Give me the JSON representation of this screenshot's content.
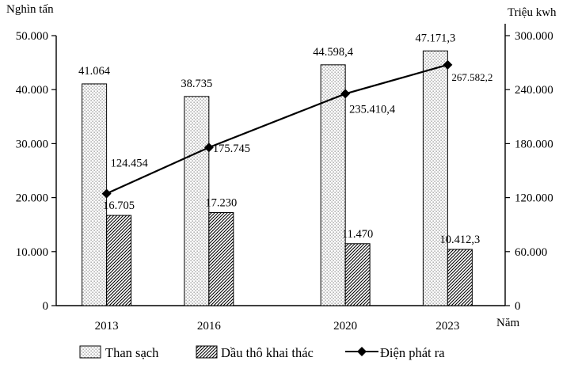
{
  "chart_data": {
    "type": "bar-line-combo",
    "categories": [
      "2013",
      "2016",
      "2020",
      "2023"
    ],
    "x_positions": [
      2013,
      2016,
      2020,
      2023
    ],
    "xlabel": "Năm",
    "left_axis": {
      "label": "Nghìn tấn",
      "range": [
        0,
        50000
      ],
      "ticks": [
        "0",
        "10.000",
        "20.000",
        "30.000",
        "40.000",
        "50.000"
      ],
      "tick_values": [
        0,
        10000,
        20000,
        30000,
        40000,
        50000
      ]
    },
    "right_axis": {
      "label": "Triệu kwh",
      "range": [
        0,
        300000
      ],
      "ticks": [
        "0",
        "60.000",
        "120.000",
        "180.000",
        "240.000",
        "300.000"
      ],
      "tick_values": [
        0,
        60000,
        120000,
        180000,
        240000,
        300000
      ]
    },
    "series": [
      {
        "name": "Than sạch",
        "type": "bar",
        "axis": "left",
        "pattern": "dots",
        "values": [
          41064,
          38735,
          44598.4,
          47171.3
        ],
        "labels": [
          "41.064",
          "38.735",
          "44.598,4",
          "47.171,3"
        ]
      },
      {
        "name": "Dầu thô khai thác",
        "type": "bar",
        "axis": "left",
        "pattern": "hatch",
        "values": [
          16705,
          17230,
          11470,
          10412.3
        ],
        "labels": [
          "16.705",
          "17.230",
          "11.470",
          "10.412,3"
        ]
      },
      {
        "name": "Điện phát ra",
        "type": "line",
        "axis": "right",
        "marker": "diamond",
        "values": [
          124454,
          175745,
          235410.4,
          267582.2
        ],
        "labels": [
          "124.454",
          "175.745",
          "235.410,4",
          "267.582,2"
        ]
      }
    ],
    "grid": false,
    "legend_position": "bottom"
  }
}
